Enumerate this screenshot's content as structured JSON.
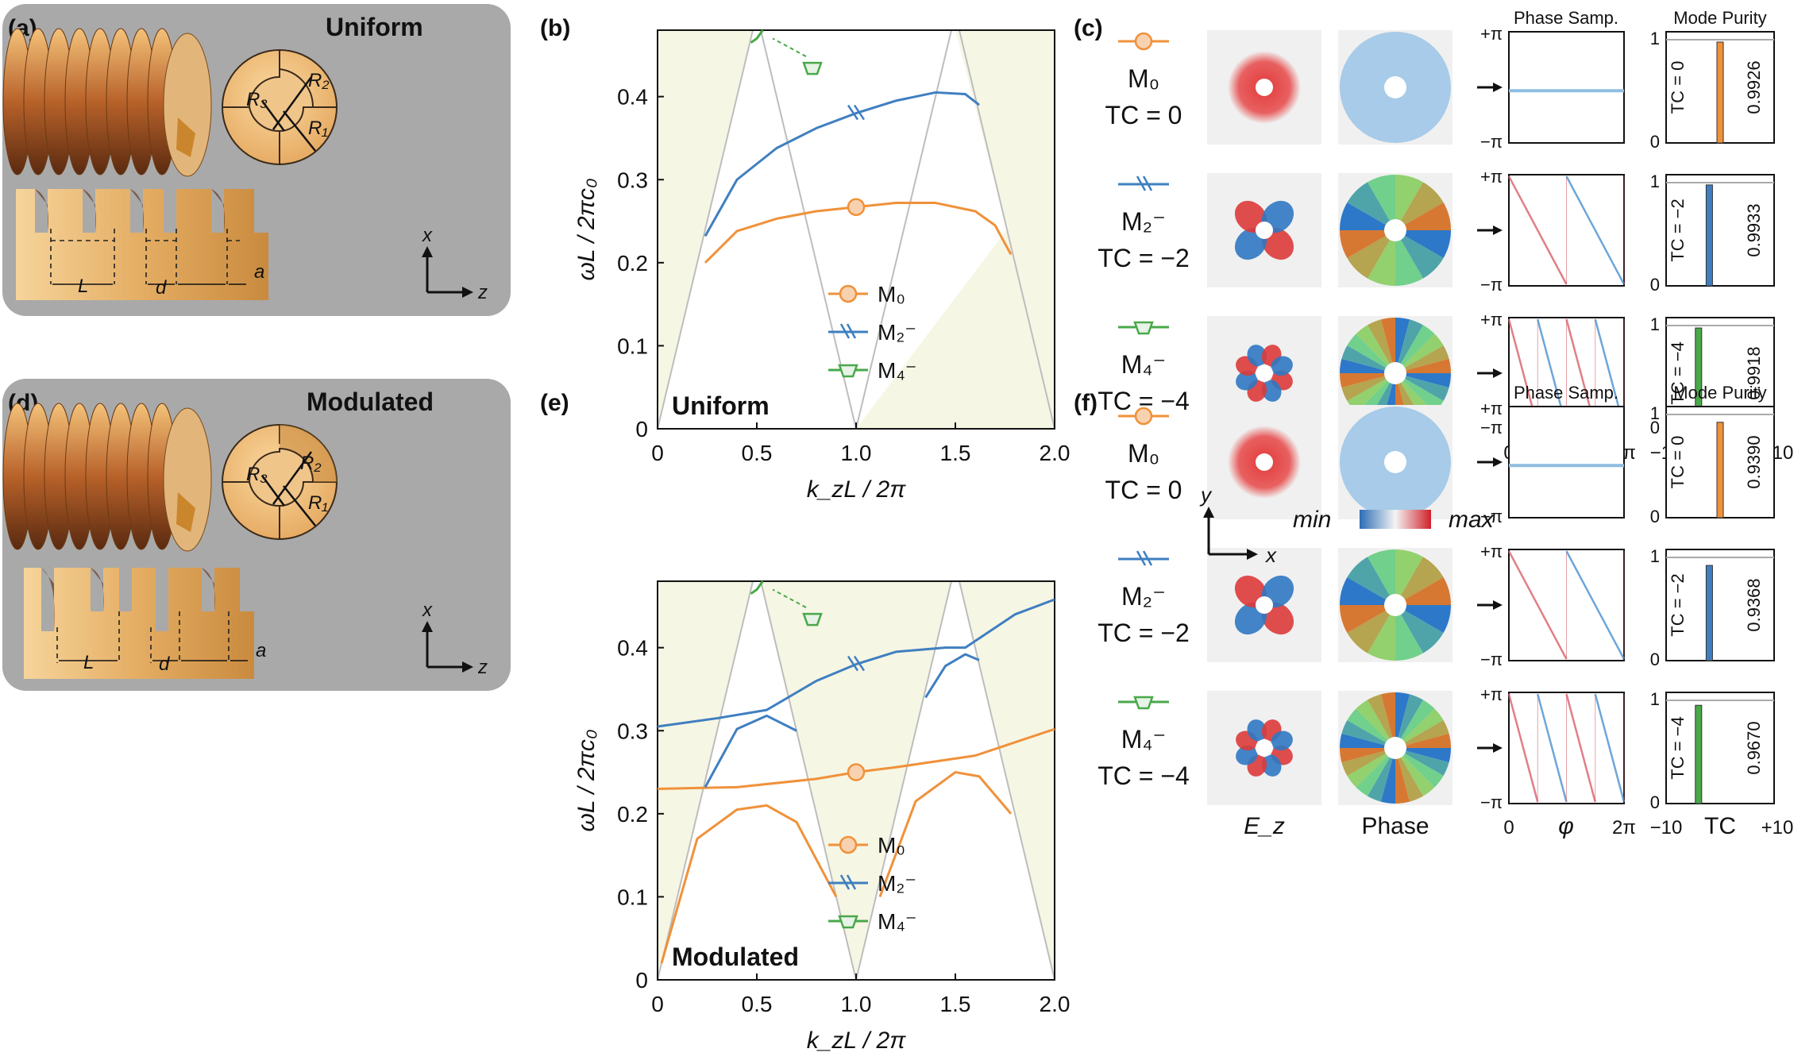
{
  "panels": {
    "a": {
      "label": "(a)",
      "title": "Uniform"
    },
    "b": {
      "label": "(b)",
      "tag": "Uniform"
    },
    "c": {
      "label": "(c)"
    },
    "d": {
      "label": "(d)",
      "title": "Modulated"
    },
    "e": {
      "label": "(e)",
      "tag": "Modulated"
    },
    "f": {
      "label": "(f)"
    }
  },
  "geometry": {
    "R1": "R₁",
    "R2": "R₂",
    "R3": "R₃",
    "L": "L",
    "d": "d",
    "a": "a",
    "axis_x": "x",
    "axis_z": "z"
  },
  "axis_labels": {
    "ylabel": "ωL / 2πc₀",
    "xlabel": "k_zL / 2π",
    "xticks": [
      "0",
      "0.5",
      "1.0",
      "1.5",
      "2.0"
    ],
    "yticks": [
      "0",
      "0.1",
      "0.2",
      "0.3",
      "0.4"
    ]
  },
  "legend": {
    "m0": "M₀",
    "m2": "M₂⁻",
    "m4": "M₄⁻"
  },
  "modes": [
    {
      "name": "M₀",
      "tc": "TC = 0"
    },
    {
      "name": "M₂⁻",
      "tc": "TC = −2"
    },
    {
      "name": "M₄⁻",
      "tc": "TC = −4"
    }
  ],
  "column_labels": {
    "ez": "E_z",
    "phase": "Phase",
    "phase_samp": "Phase Samp.",
    "mode_purity": "Mode Purity",
    "phi": "φ",
    "tc": "TC"
  },
  "phase_axis": {
    "top": "+π",
    "bottom": "−π",
    "left": "0",
    "right": "2π"
  },
  "purity_axis": {
    "top": "1",
    "bottom": "0",
    "left": "−10",
    "right": "+10"
  },
  "colorbar": {
    "min": "min",
    "max": "max",
    "axis_y": "y",
    "axis_x": "x"
  },
  "purity_c": [
    {
      "tc_label": "TC = 0",
      "value": "0.9926",
      "fraction": 0.9926,
      "tc": 0
    },
    {
      "tc_label": "TC = −2",
      "value": "0.9933",
      "fraction": 0.9933,
      "tc": -2
    },
    {
      "tc_label": "TC = −4",
      "value": "0.9918",
      "fraction": 0.9918,
      "tc": -4
    }
  ],
  "purity_f": [
    {
      "tc_label": "TC = 0",
      "value": "0.9390",
      "fraction": 0.939,
      "tc": 0
    },
    {
      "tc_label": "TC = −2",
      "value": "0.9368",
      "fraction": 0.9368,
      "tc": -2
    },
    {
      "tc_label": "TC = −4",
      "value": "0.9670",
      "fraction": 0.967,
      "tc": -4
    }
  ],
  "colors": {
    "m0": "#f0913a",
    "m2": "#3f7fc0",
    "m4": "#4aa84a",
    "shade": "#f6f6e4",
    "panel_bg": "#a9a9a9",
    "gold": "#e0a860"
  },
  "chart_data": [
    {
      "type": "line",
      "panel": "b",
      "xlabel": "k_zL / 2π",
      "ylabel": "ωL / 2πc₀",
      "xlim": [
        0,
        2.0
      ],
      "ylim": [
        0,
        0.48
      ],
      "series": [
        {
          "name": "M₀",
          "x": [
            0.24,
            0.4,
            0.6,
            0.8,
            1.0,
            1.2,
            1.4,
            1.6,
            1.7,
            1.78
          ],
          "y": [
            0.2,
            0.238,
            0.253,
            0.262,
            0.267,
            0.272,
            0.272,
            0.262,
            0.245,
            0.21
          ]
        },
        {
          "name": "M₂⁻",
          "x": [
            0.24,
            0.4,
            0.6,
            0.8,
            1.0,
            1.2,
            1.4,
            1.55,
            1.62
          ],
          "y": [
            0.232,
            0.3,
            0.338,
            0.362,
            0.38,
            0.395,
            0.405,
            0.403,
            0.39
          ]
        },
        {
          "name": "M₄⁻",
          "x": [
            0.47,
            0.5,
            0.53
          ],
          "y": [
            0.465,
            0.47,
            0.48
          ]
        }
      ]
    },
    {
      "type": "line",
      "panel": "e",
      "xlabel": "k_zL / 2π",
      "ylabel": "ωL / 2πc₀",
      "xlim": [
        0,
        2.0
      ],
      "ylim": [
        0,
        0.48
      ],
      "series": [
        {
          "name": "M₀",
          "x": [
            0,
            0.4,
            0.8,
            1.0,
            1.2,
            1.6,
            2.0
          ],
          "y": [
            0.23,
            0.232,
            0.242,
            0.25,
            0.256,
            0.27,
            0.302
          ]
        },
        {
          "name": "M₀",
          "x": [
            0.02,
            0.2,
            0.4,
            0.55,
            0.7,
            0.9
          ],
          "y": [
            0.02,
            0.17,
            0.205,
            0.21,
            0.19,
            0.1
          ]
        },
        {
          "name": "M₀",
          "x": [
            1.12,
            1.3,
            1.5,
            1.62,
            1.78
          ],
          "y": [
            0.1,
            0.215,
            0.25,
            0.245,
            0.2
          ]
        },
        {
          "name": "M₂⁻",
          "x": [
            0,
            0.3,
            0.55,
            0.8,
            1.0,
            1.2,
            1.45,
            1.55,
            1.8,
            2.0
          ],
          "y": [
            0.305,
            0.315,
            0.325,
            0.36,
            0.38,
            0.395,
            0.4,
            0.4,
            0.44,
            0.458
          ]
        },
        {
          "name": "M₂⁻",
          "x": [
            0.24,
            0.4,
            0.55,
            0.7
          ],
          "y": [
            0.232,
            0.302,
            0.318,
            0.3
          ]
        },
        {
          "name": "M₂⁻",
          "x": [
            1.35,
            1.45,
            1.55,
            1.62
          ],
          "y": [
            0.34,
            0.378,
            0.392,
            0.385
          ]
        },
        {
          "name": "M₄⁻",
          "x": [
            0.47,
            0.5,
            0.53
          ],
          "y": [
            0.465,
            0.47,
            0.48
          ]
        }
      ]
    },
    {
      "type": "bar",
      "panel": "c",
      "categories": [
        "TC = 0",
        "TC = −2",
        "TC = −4"
      ],
      "values": [
        0.9926,
        0.9933,
        0.9918
      ]
    },
    {
      "type": "bar",
      "panel": "f",
      "categories": [
        "TC = 0",
        "TC = −2",
        "TC = −4"
      ],
      "values": [
        0.939,
        0.9368,
        0.967
      ]
    }
  ]
}
